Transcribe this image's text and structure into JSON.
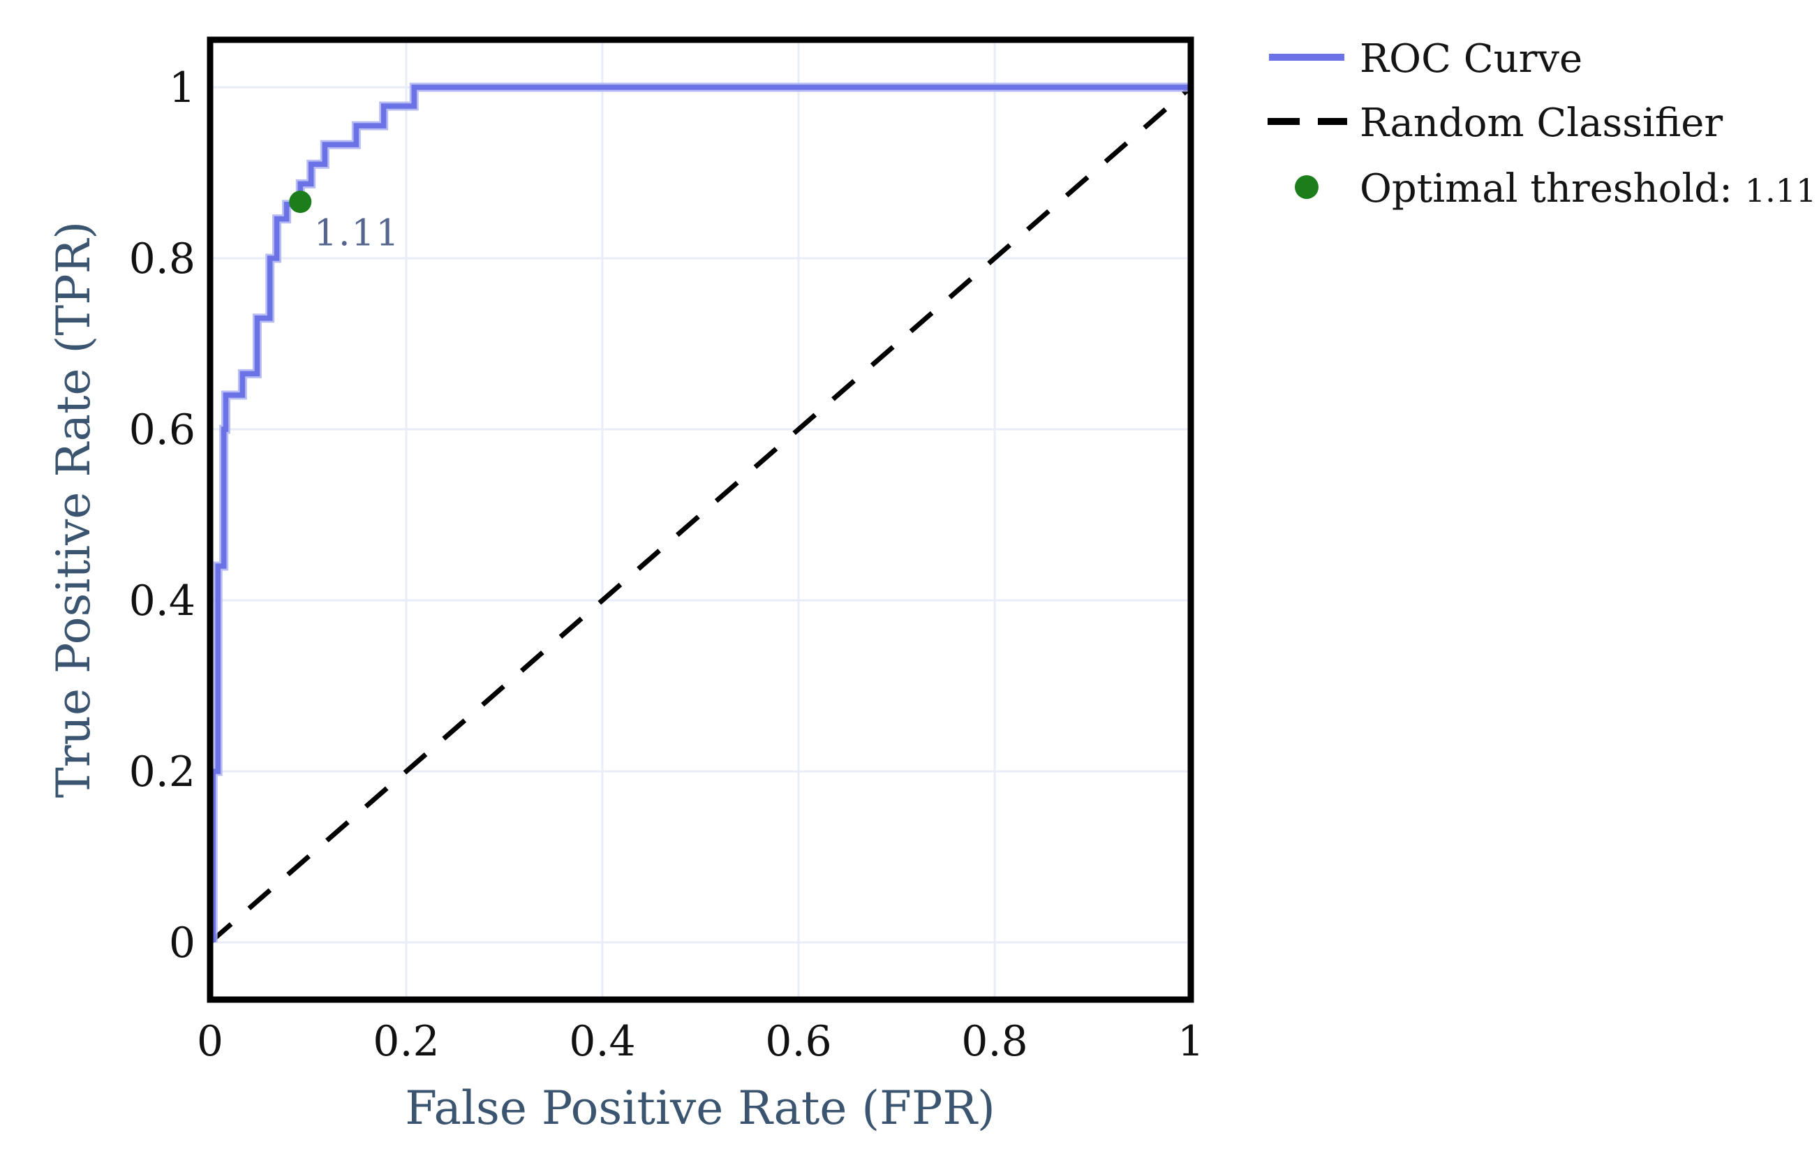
{
  "chart_data": {
    "type": "line",
    "title": "",
    "xlabel": "False Positive Rate (FPR)",
    "ylabel": "True Positive Rate (TPR)",
    "xlim": [
      0,
      1
    ],
    "ylim": [
      0,
      1
    ],
    "grid": true,
    "legend_position": "outside-top-right",
    "xticks": {
      "values": [
        0,
        0.2,
        0.4,
        0.6,
        0.8,
        1
      ],
      "labels": [
        "0",
        "0.2",
        "0.4",
        "0.6",
        "0.8",
        "1"
      ]
    },
    "yticks": {
      "values": [
        0,
        0.2,
        0.4,
        0.6,
        0.8,
        1
      ],
      "labels": [
        "0",
        "0.2",
        "0.4",
        "0.6",
        "0.8",
        "1"
      ]
    },
    "series": [
      {
        "name": "ROC Curve",
        "type": "step_line",
        "color": "#6b72e6",
        "halo_color": "#aab0f2",
        "points": [
          [
            0.003,
            0.0
          ],
          [
            0.003,
            0.2
          ],
          [
            0.008,
            0.2
          ],
          [
            0.008,
            0.44
          ],
          [
            0.014,
            0.44
          ],
          [
            0.014,
            0.6
          ],
          [
            0.016,
            0.6
          ],
          [
            0.016,
            0.64
          ],
          [
            0.033,
            0.64
          ],
          [
            0.033,
            0.665
          ],
          [
            0.048,
            0.665
          ],
          [
            0.048,
            0.73
          ],
          [
            0.061,
            0.73
          ],
          [
            0.061,
            0.8
          ],
          [
            0.068,
            0.8
          ],
          [
            0.068,
            0.846
          ],
          [
            0.078,
            0.846
          ],
          [
            0.078,
            0.863
          ],
          [
            0.092,
            0.863
          ],
          [
            0.092,
            0.887
          ],
          [
            0.103,
            0.887
          ],
          [
            0.103,
            0.91
          ],
          [
            0.117,
            0.91
          ],
          [
            0.117,
            0.933
          ],
          [
            0.149,
            0.933
          ],
          [
            0.149,
            0.955
          ],
          [
            0.177,
            0.955
          ],
          [
            0.177,
            0.978
          ],
          [
            0.208,
            0.978
          ],
          [
            0.208,
            1.0
          ],
          [
            1.0,
            1.0
          ]
        ]
      },
      {
        "name": "Random Classifier",
        "type": "dashed_line",
        "color": "#000000",
        "points": [
          [
            0,
            0
          ],
          [
            1,
            1
          ]
        ]
      },
      {
        "name": "Optimal threshold: 1.11",
        "type": "scatter",
        "color": "#1b7e1b",
        "points": [
          [
            0.092,
            0.866
          ]
        ],
        "annotation": {
          "text": "1.11",
          "x": 0.15,
          "y": 0.815,
          "color": "#55658e"
        }
      }
    ]
  },
  "legend": {
    "items": [
      {
        "label": "ROC Curve",
        "marker": "line",
        "color": "#6b72e6"
      },
      {
        "label": "Random Classifier",
        "marker": "dashed-line",
        "color": "#000000"
      },
      {
        "label": "Optimal threshold: ",
        "value": "1.11",
        "marker": "dot",
        "color": "#1b7e1b"
      }
    ]
  },
  "colors": {
    "axis_label": "#3b5570",
    "tick_label": "#111111",
    "legend_text": "#141414",
    "annotation": "#55658e",
    "gridline": "#e9edf7",
    "plot_border": "#000000",
    "background": "#ffffff"
  }
}
